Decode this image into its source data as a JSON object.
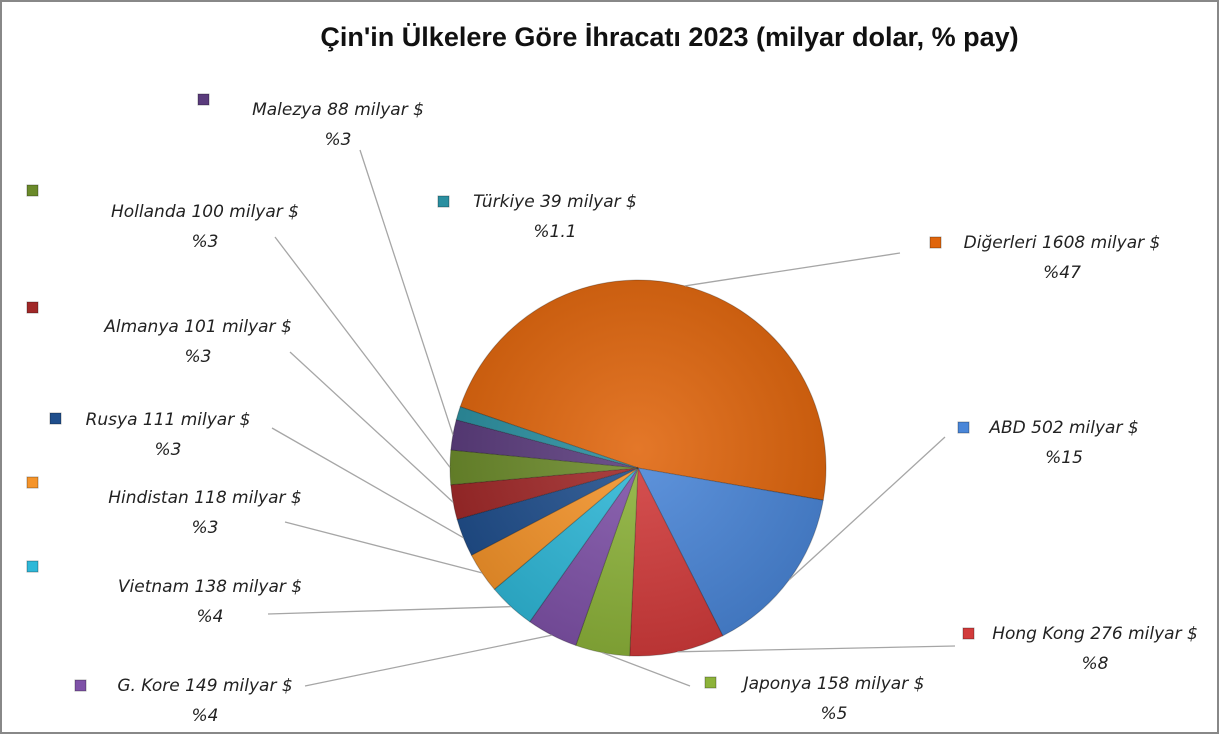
{
  "chart_data": {
    "type": "pie",
    "title": "Çin'in Ülkelere Göre İhracatı 2023 (milyar dolar, % pay)",
    "categories": [
      "Diğerleri",
      "ABD",
      "Hong Kong",
      "Japonya",
      "G. Kore",
      "Vietnam",
      "Hindistan",
      "Rusya",
      "Almanya",
      "Hollanda",
      "Malezya",
      "Türkiye"
    ],
    "values": [
      1608,
      502,
      276,
      158,
      149,
      138,
      118,
      111,
      101,
      100,
      88,
      39
    ],
    "value_labels": [
      "1608 milyar $",
      "502 milyar $",
      "276 milyar $",
      "158 milyar $",
      "149 milyar $",
      "138 milyar $",
      "118 milyar $",
      "111 milyar $",
      "101 milyar $",
      "100 milyar $",
      "88 milyar $",
      "39 milyar $"
    ],
    "shares": [
      47,
      15,
      8,
      5,
      4,
      4,
      3,
      3,
      3,
      3,
      3,
      1.1
    ],
    "share_labels": [
      "%47",
      "%15",
      "%8",
      "%5",
      "%4",
      "%4",
      "%3",
      "%3",
      "%3",
      "%3",
      "%3",
      "%1.1"
    ],
    "colors": [
      "#e0650c",
      "#4a86d8",
      "#d23b3b",
      "#8db33a",
      "#7f52a8",
      "#2fb8d8",
      "#f5942a",
      "#1f4e8c",
      "#a02828",
      "#6b8a2a",
      "#5a3b7c",
      "#2a8fa0"
    ]
  }
}
